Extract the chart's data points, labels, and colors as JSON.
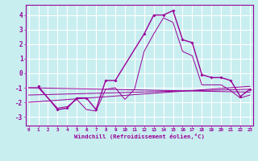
{
  "background_color": "#c8eef0",
  "line_color": "#990099",
  "grid_color": "#ffffff",
  "x_ticks": [
    0,
    1,
    2,
    3,
    4,
    5,
    6,
    7,
    8,
    9,
    10,
    11,
    12,
    13,
    14,
    15,
    16,
    17,
    18,
    19,
    20,
    21,
    22,
    23
  ],
  "xlabel": "Windchill (Refroidissement éolien,°C)",
  "ylim": [
    -3.6,
    4.7
  ],
  "xlim": [
    -0.3,
    23.3
  ],
  "yticks": [
    -3,
    -2,
    -1,
    0,
    1,
    2,
    3,
    4
  ],
  "main_line": {
    "x": [
      1,
      3,
      4,
      5,
      6,
      7,
      8,
      9,
      12,
      13,
      14,
      15,
      16,
      17,
      18,
      19,
      20,
      21,
      22,
      23
    ],
    "y": [
      -0.9,
      -2.5,
      -2.4,
      -1.7,
      -1.7,
      -2.5,
      -0.5,
      -0.5,
      2.7,
      4.0,
      4.0,
      4.3,
      2.3,
      2.1,
      -0.1,
      -0.3,
      -0.3,
      -0.5,
      -1.6,
      -1.1
    ]
  },
  "line2": {
    "x": [
      0,
      1,
      2,
      3,
      4,
      5,
      6,
      7,
      8,
      9,
      10,
      11,
      12,
      13,
      14,
      15,
      16,
      17,
      18,
      19,
      20,
      21,
      22,
      23
    ],
    "y": [
      -1.0,
      -1.0,
      -1.7,
      -2.4,
      -2.3,
      -1.8,
      -2.5,
      -2.6,
      -1.1,
      -1.0,
      -1.8,
      -1.1,
      1.5,
      2.7,
      3.8,
      3.5,
      1.5,
      1.2,
      -0.8,
      -0.8,
      -0.8,
      -1.2,
      -1.7,
      -1.5
    ]
  },
  "ref_lines": [
    {
      "x": [
        0,
        23
      ],
      "y": [
        -1.0,
        -1.3
      ]
    },
    {
      "x": [
        0,
        23
      ],
      "y": [
        -1.5,
        -1.1
      ]
    },
    {
      "x": [
        0,
        23
      ],
      "y": [
        -2.0,
        -0.9
      ]
    }
  ]
}
